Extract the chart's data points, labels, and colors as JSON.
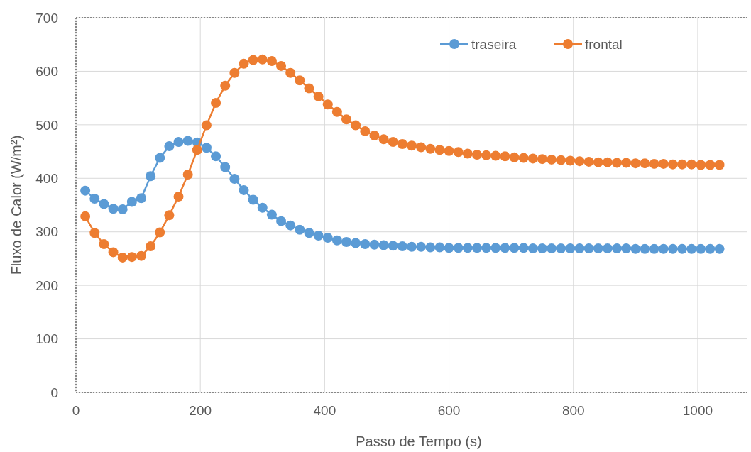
{
  "chart_data": {
    "type": "line",
    "xlabel": "Passo de Tempo (s)",
    "ylabel": "Fluxo de Calor (W/m²)",
    "x": [
      15,
      30,
      45,
      60,
      75,
      90,
      105,
      120,
      135,
      150,
      165,
      180,
      195,
      210,
      225,
      240,
      255,
      270,
      285,
      300,
      315,
      330,
      345,
      360,
      375,
      390,
      405,
      420,
      435,
      450,
      465,
      480,
      495,
      510,
      525,
      540,
      555,
      570,
      585,
      600,
      615,
      630,
      645,
      660,
      675,
      690,
      705,
      720,
      735,
      750,
      765,
      780,
      795,
      810,
      825,
      840,
      855,
      870,
      885,
      900,
      915,
      930,
      945,
      960,
      975,
      990,
      1005,
      1020,
      1035
    ],
    "series": [
      {
        "name": "traseira",
        "color": "#5b9bd5",
        "values": [
          377,
          362,
          352,
          343,
          342,
          356,
          363,
          404,
          438,
          460,
          468,
          470,
          467,
          457,
          441,
          421,
          399,
          378,
          360,
          345,
          332,
          320,
          312,
          304,
          298,
          293,
          289,
          284,
          281,
          279,
          277,
          276,
          275,
          274,
          273,
          272,
          272,
          271,
          271,
          270,
          270,
          270,
          270,
          270,
          270,
          270,
          270,
          270,
          269,
          269,
          269,
          269,
          269,
          269,
          269,
          269,
          269,
          269,
          269,
          268,
          268,
          268,
          268,
          268,
          268,
          268,
          268,
          268,
          268
        ]
      },
      {
        "name": "frontal",
        "color": "#ed7d31",
        "values": [
          329,
          298,
          277,
          262,
          252,
          253,
          255,
          273,
          299,
          331,
          366,
          407,
          453,
          499,
          541,
          573,
          597,
          614,
          621,
          622,
          619,
          610,
          597,
          583,
          568,
          553,
          538,
          524,
          510,
          499,
          488,
          480,
          473,
          468,
          464,
          461,
          458,
          455,
          453,
          451,
          449,
          446,
          444,
          443,
          442,
          441,
          439,
          438,
          437,
          436,
          435,
          434,
          433,
          432,
          431,
          430,
          430,
          429,
          429,
          428,
          428,
          427,
          427,
          426,
          426,
          426,
          425,
          425,
          425
        ]
      }
    ],
    "xlim": [
      0,
      1080
    ],
    "xticks": [
      0,
      200,
      400,
      600,
      800,
      1000
    ],
    "ylim": [
      0,
      700
    ],
    "yticks": [
      0,
      100,
      200,
      300,
      400,
      500,
      600,
      700
    ],
    "grid": true,
    "legend": "top right",
    "marker": "circle",
    "line_style": "solid"
  }
}
